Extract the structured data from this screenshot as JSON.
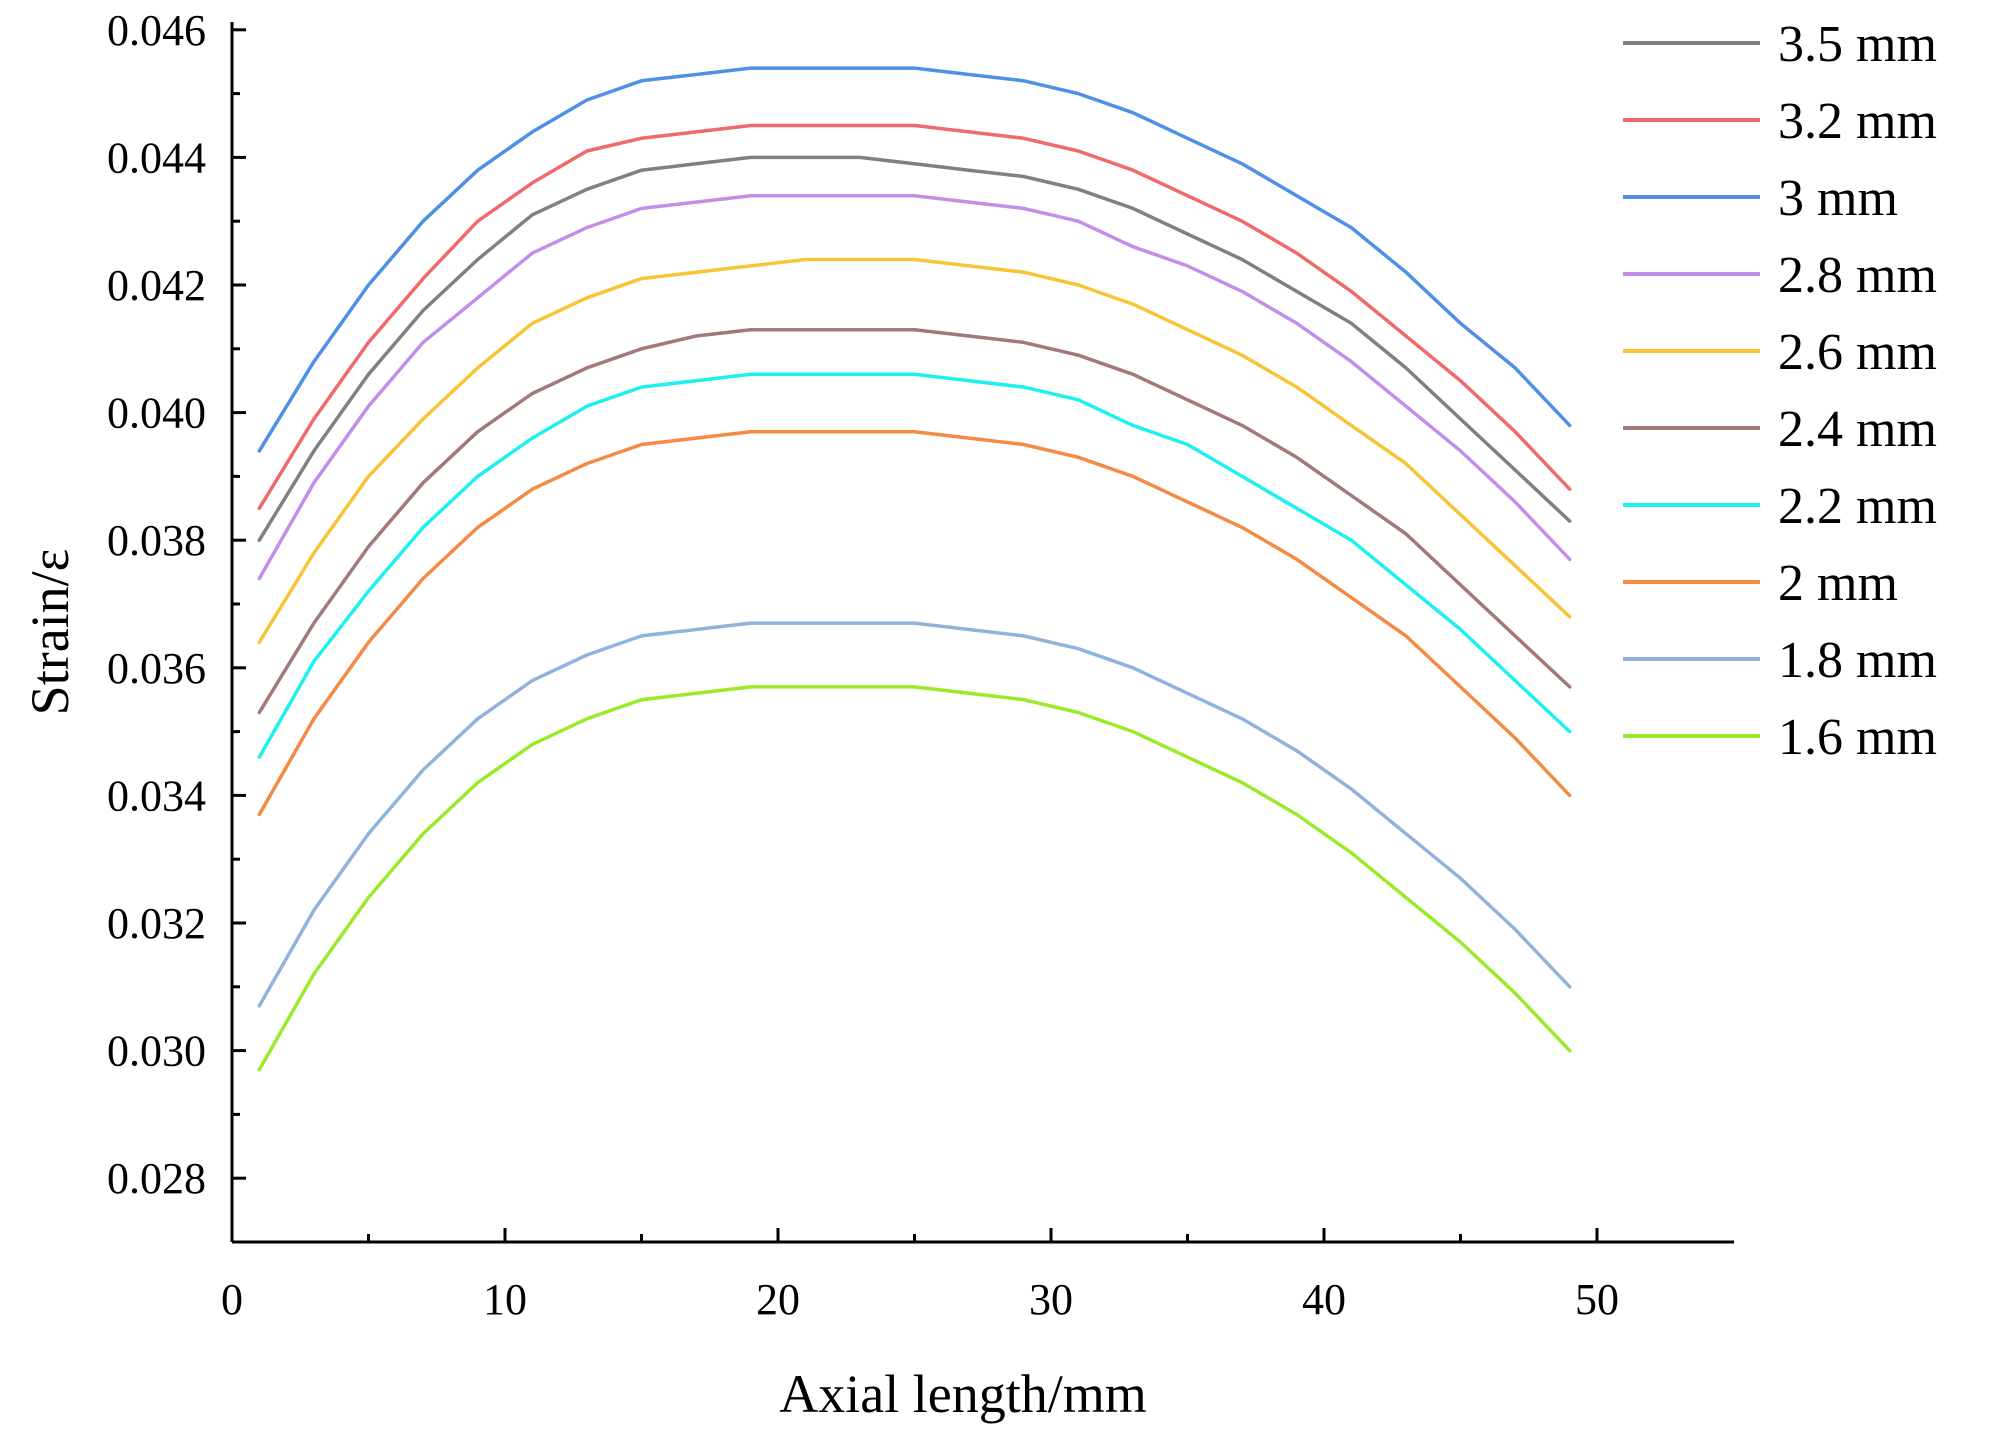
{
  "chart_data": {
    "type": "line",
    "title": "",
    "xlabel": "Axial length/mm",
    "ylabel": "Strain/ε",
    "xlim": [
      0,
      55
    ],
    "ylim": [
      0.027,
      0.046
    ],
    "xticks": [
      0,
      10,
      20,
      30,
      40,
      50
    ],
    "xtick_labels": [
      "0",
      "10",
      "20",
      "30",
      "40",
      "50"
    ],
    "yticks": [
      0.028,
      0.03,
      0.032,
      0.034,
      0.036,
      0.038,
      0.04,
      0.042,
      0.044,
      0.046
    ],
    "ytick_labels": [
      "0.028",
      "0.030",
      "0.032",
      "0.034",
      "0.036",
      "0.038",
      "0.040",
      "0.042",
      "0.044",
      "0.046"
    ],
    "grid": false,
    "legend_position": "top-right outside",
    "x": [
      1,
      3,
      5,
      7,
      9,
      11,
      13,
      15,
      17,
      19,
      21,
      23,
      25,
      27,
      29,
      31,
      33,
      35,
      37,
      39,
      41,
      43,
      45,
      47,
      49
    ],
    "series": [
      {
        "name": "3.5 mm",
        "color": "#808080",
        "values": [
          0.038,
          0.0394,
          0.0406,
          0.0416,
          0.0424,
          0.0431,
          0.0435,
          0.0438,
          0.0439,
          0.044,
          0.044,
          0.044,
          0.0439,
          0.0438,
          0.0437,
          0.0435,
          0.0432,
          0.0428,
          0.0424,
          0.0419,
          0.0414,
          0.0407,
          0.0399,
          0.0391,
          0.0383
        ]
      },
      {
        "name": "3.2 mm",
        "color": "#f06a6a",
        "values": [
          0.0385,
          0.0399,
          0.0411,
          0.0421,
          0.043,
          0.0436,
          0.0441,
          0.0443,
          0.0444,
          0.0445,
          0.0445,
          0.0445,
          0.0445,
          0.0444,
          0.0443,
          0.0441,
          0.0438,
          0.0434,
          0.043,
          0.0425,
          0.0419,
          0.0412,
          0.0405,
          0.0397,
          0.0388
        ]
      },
      {
        "name": "3 mm",
        "color": "#4f8fe6",
        "values": [
          0.0394,
          0.0408,
          0.042,
          0.043,
          0.0438,
          0.0444,
          0.0449,
          0.0452,
          0.0453,
          0.0454,
          0.0454,
          0.0454,
          0.0454,
          0.0453,
          0.0452,
          0.045,
          0.0447,
          0.0443,
          0.0439,
          0.0434,
          0.0429,
          0.0422,
          0.0414,
          0.0407,
          0.0398
        ]
      },
      {
        "name": "2.8 mm",
        "color": "#c38ee8",
        "values": [
          0.0374,
          0.0389,
          0.0401,
          0.0411,
          0.0418,
          0.0425,
          0.0429,
          0.0432,
          0.0433,
          0.0434,
          0.0434,
          0.0434,
          0.0434,
          0.0433,
          0.0432,
          0.043,
          0.0426,
          0.0423,
          0.0419,
          0.0414,
          0.0408,
          0.0401,
          0.0394,
          0.0386,
          0.0377
        ]
      },
      {
        "name": "2.6 mm",
        "color": "#f7c436",
        "values": [
          0.0364,
          0.0378,
          0.039,
          0.0399,
          0.0407,
          0.0414,
          0.0418,
          0.0421,
          0.0422,
          0.0423,
          0.0424,
          0.0424,
          0.0424,
          0.0423,
          0.0422,
          0.042,
          0.0417,
          0.0413,
          0.0409,
          0.0404,
          0.0398,
          0.0392,
          0.0384,
          0.0376,
          0.0368
        ]
      },
      {
        "name": "2.4 mm",
        "color": "#a47878",
        "values": [
          0.0353,
          0.0367,
          0.0379,
          0.0389,
          0.0397,
          0.0403,
          0.0407,
          0.041,
          0.0412,
          0.0413,
          0.0413,
          0.0413,
          0.0413,
          0.0412,
          0.0411,
          0.0409,
          0.0406,
          0.0402,
          0.0398,
          0.0393,
          0.0387,
          0.0381,
          0.0373,
          0.0365,
          0.0357
        ]
      },
      {
        "name": "2.2 mm",
        "color": "#1ef0f0",
        "values": [
          0.0346,
          0.0361,
          0.0372,
          0.0382,
          0.039,
          0.0396,
          0.0401,
          0.0404,
          0.0405,
          0.0406,
          0.0406,
          0.0406,
          0.0406,
          0.0405,
          0.0404,
          0.0402,
          0.0398,
          0.0395,
          0.039,
          0.0385,
          0.038,
          0.0373,
          0.0366,
          0.0358,
          0.035
        ]
      },
      {
        "name": "2 mm",
        "color": "#f48a44",
        "values": [
          0.0337,
          0.0352,
          0.0364,
          0.0374,
          0.0382,
          0.0388,
          0.0392,
          0.0395,
          0.0396,
          0.0397,
          0.0397,
          0.0397,
          0.0397,
          0.0396,
          0.0395,
          0.0393,
          0.039,
          0.0386,
          0.0382,
          0.0377,
          0.0371,
          0.0365,
          0.0357,
          0.0349,
          0.034
        ]
      },
      {
        "name": "1.8 mm",
        "color": "#8fb4dc",
        "values": [
          0.0307,
          0.0322,
          0.0334,
          0.0344,
          0.0352,
          0.0358,
          0.0362,
          0.0365,
          0.0366,
          0.0367,
          0.0367,
          0.0367,
          0.0367,
          0.0366,
          0.0365,
          0.0363,
          0.036,
          0.0356,
          0.0352,
          0.0347,
          0.0341,
          0.0334,
          0.0327,
          0.0319,
          0.031
        ]
      },
      {
        "name": "1.6 mm",
        "color": "#9aea2a",
        "values": [
          0.0297,
          0.0312,
          0.0324,
          0.0334,
          0.0342,
          0.0348,
          0.0352,
          0.0355,
          0.0356,
          0.0357,
          0.0357,
          0.0357,
          0.0357,
          0.0356,
          0.0355,
          0.0353,
          0.035,
          0.0346,
          0.0342,
          0.0337,
          0.0331,
          0.0324,
          0.0317,
          0.0309,
          0.03
        ]
      }
    ]
  }
}
